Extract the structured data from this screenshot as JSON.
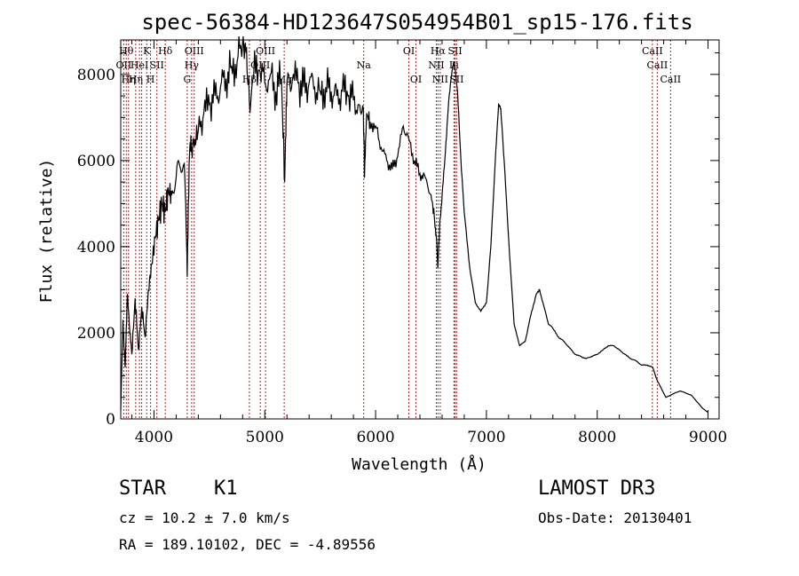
{
  "chart_data": {
    "type": "line",
    "title": "spec-56384-HD123647S054954B01_sp15-176.fits",
    "xlabel": "Wavelength (Å)",
    "ylabel": "Flux (relative)",
    "xlim": [
      3700,
      9100
    ],
    "ylim": [
      0,
      8800
    ],
    "xticks": [
      4000,
      5000,
      6000,
      7000,
      8000,
      9000
    ],
    "yticks": [
      0,
      2000,
      4000,
      6000,
      8000
    ],
    "series": [
      {
        "name": "spectrum",
        "x": [
          3700,
          3720,
          3740,
          3760,
          3780,
          3800,
          3830,
          3860,
          3890,
          3920,
          3950,
          3980,
          4010,
          4040,
          4070,
          4100,
          4130,
          4160,
          4200,
          4240,
          4280,
          4300,
          4320,
          4340,
          4370,
          4400,
          4450,
          4500,
          4550,
          4600,
          4650,
          4700,
          4750,
          4800,
          4830,
          4860,
          4900,
          4950,
          5000,
          5050,
          5100,
          5150,
          5180,
          5200,
          5250,
          5300,
          5350,
          5400,
          5450,
          5500,
          5550,
          5600,
          5650,
          5700,
          5750,
          5800,
          5850,
          5890,
          5900,
          5920,
          5950,
          6000,
          6050,
          6100,
          6150,
          6200,
          6250,
          6300,
          6350,
          6400,
          6450,
          6500,
          6530,
          6550,
          6562,
          6580,
          6600,
          6630,
          6660,
          6690,
          6710,
          6740,
          6770,
          6800,
          6850,
          6900,
          6950,
          7000,
          7040,
          7080,
          7110,
          7130,
          7160,
          7200,
          7250,
          7300,
          7350,
          7400,
          7450,
          7480,
          7520,
          7560,
          7600,
          7650,
          7700,
          7750,
          7800,
          7850,
          7900,
          7950,
          8000,
          8050,
          8100,
          8150,
          8200,
          8250,
          8300,
          8350,
          8400,
          8450,
          8500,
          8540,
          8580,
          8620,
          8660,
          8700,
          8750,
          8800,
          8850,
          8900,
          8950,
          9000
        ],
        "values": [
          200,
          2300,
          1200,
          2900,
          2100,
          1500,
          2800,
          1600,
          2600,
          1900,
          3000,
          3600,
          4200,
          4600,
          5000,
          4800,
          5300,
          5200,
          5600,
          5800,
          5500,
          3300,
          6100,
          6300,
          6500,
          6700,
          7100,
          7300,
          7500,
          7700,
          7900,
          8200,
          8300,
          8700,
          8500,
          7400,
          8000,
          8100,
          7800,
          8000,
          7600,
          7900,
          5500,
          7800,
          7900,
          7800,
          7700,
          7800,
          7700,
          7600,
          7700,
          7600,
          7500,
          7600,
          7500,
          7400,
          7300,
          7200,
          5600,
          7100,
          6900,
          6800,
          6300,
          6000,
          5800,
          6100,
          6800,
          6500,
          6000,
          5700,
          5600,
          5200,
          4700,
          4200,
          3500,
          4600,
          5200,
          6200,
          7400,
          8100,
          8300,
          7600,
          6000,
          4800,
          3500,
          2700,
          2500,
          2700,
          4000,
          6000,
          7300,
          7200,
          6000,
          4200,
          2200,
          1700,
          1800,
          2400,
          2900,
          3000,
          2600,
          2200,
          2100,
          1900,
          1800,
          1650,
          1500,
          1450,
          1400,
          1450,
          1500,
          1600,
          1700,
          1700,
          1600,
          1500,
          1400,
          1350,
          1250,
          1250,
          1200,
          900,
          700,
          500,
          550,
          600,
          650,
          600,
          550,
          400,
          250,
          150
        ]
      }
    ],
    "line_markers": [
      {
        "wavelength": 3727,
        "label": "OII",
        "row": 2
      },
      {
        "wavelength": 3750,
        "label": "Hθ",
        "row": 1
      },
      {
        "wavelength": 3770,
        "label": "Hη",
        "row": 3
      },
      {
        "wavelength": 3835,
        "label": "Hη",
        "row": 3
      },
      {
        "wavelength": 3869,
        "label": "HeI",
        "row": 2
      },
      {
        "wavelength": 3889,
        "label": "",
        "row": 0
      },
      {
        "wavelength": 3934,
        "label": "K",
        "row": 1
      },
      {
        "wavelength": 3969,
        "label": "H",
        "row": 3
      },
      {
        "wavelength": 4026,
        "label": "SII",
        "row": 2
      },
      {
        "wavelength": 4102,
        "label": "Hδ",
        "row": 1
      },
      {
        "wavelength": 4300,
        "label": "G",
        "row": 3
      },
      {
        "wavelength": 4340,
        "label": "Hγ",
        "row": 2
      },
      {
        "wavelength": 4363,
        "label": "OIII",
        "row": 1
      },
      {
        "wavelength": 4861,
        "label": "Hβ",
        "row": 3
      },
      {
        "wavelength": 4959,
        "label": "OIII",
        "row": 2
      },
      {
        "wavelength": 5007,
        "label": "OIII",
        "row": 1
      },
      {
        "wavelength": 5175,
        "label": "Mg",
        "row": 3
      },
      {
        "wavelength": 5893,
        "label": "Na",
        "row": 2
      },
      {
        "wavelength": 6300,
        "label": "OI",
        "row": 1
      },
      {
        "wavelength": 6364,
        "label": "OI",
        "row": 3
      },
      {
        "wavelength": 6548,
        "label": "NII",
        "row": 2
      },
      {
        "wavelength": 6563,
        "label": "Hα",
        "row": 1
      },
      {
        "wavelength": 6583,
        "label": "NII",
        "row": 3
      },
      {
        "wavelength": 6707,
        "label": "Li",
        "row": 2
      },
      {
        "wavelength": 6717,
        "label": "SII",
        "row": 1
      },
      {
        "wavelength": 6731,
        "label": "SII",
        "row": 3
      },
      {
        "wavelength": 8498,
        "label": "CaII",
        "row": 1
      },
      {
        "wavelength": 8542,
        "label": "CaII",
        "row": 2
      },
      {
        "wavelength": 8662,
        "label": "CaII",
        "row": 3
      }
    ],
    "grid": false,
    "marker_color": "#b22222"
  },
  "info": {
    "class_label": "STAR",
    "subclass_label": "K1",
    "cz_text": "cz = 10.2 ± 7.0 km/s",
    "radec_text": "RA = 189.10102, DEC =  -4.89556",
    "survey_label": "LAMOST DR3",
    "obs_date_text": "Obs-Date: 20130401"
  }
}
